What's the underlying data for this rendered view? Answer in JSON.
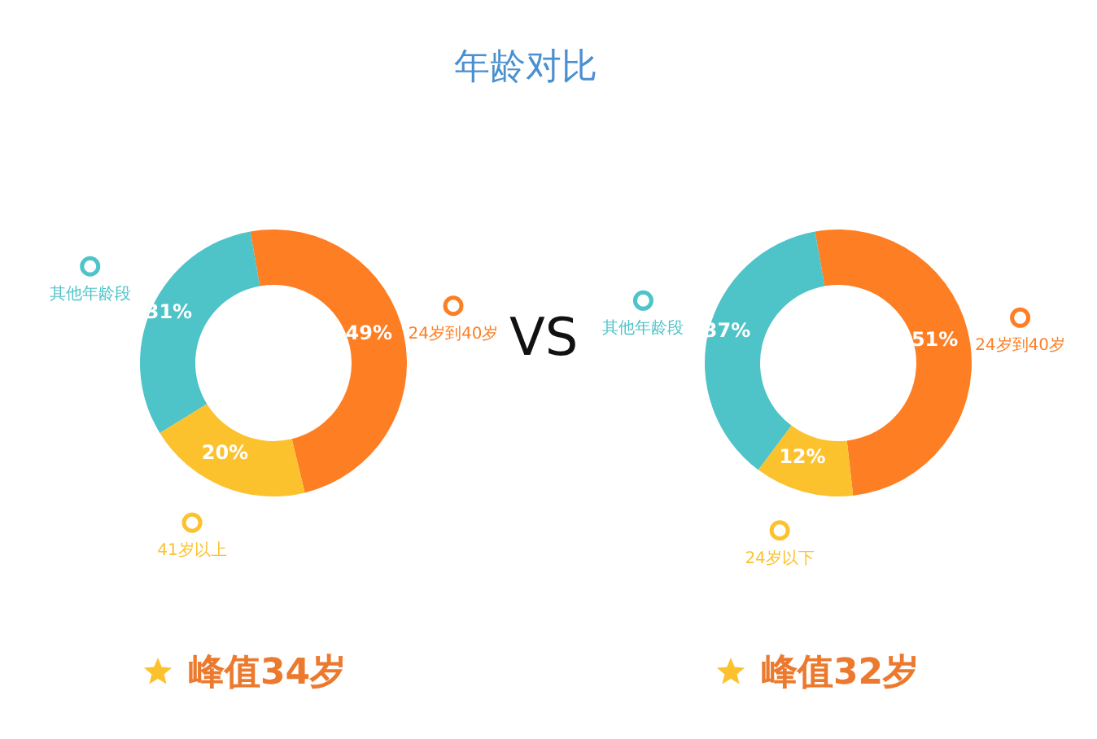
{
  "chart_data": [
    {
      "type": "donut",
      "title": "年龄对比",
      "categories": [
        "24岁到40岁",
        "41岁以上",
        "其他年龄段"
      ],
      "values": [
        49,
        20,
        31
      ],
      "colors": [
        "#fd7e23",
        "#fcc22e",
        "#4ec3c8"
      ],
      "value_labels": [
        "49%",
        "20%",
        "31%"
      ],
      "legend": "right",
      "annotations": [
        "VS",
        "峰值34岁"
      ]
    },
    {
      "type": "donut",
      "categories": [
        "24岁到40岁",
        "24岁以下",
        "其他年龄段"
      ],
      "values": [
        51,
        12,
        37
      ],
      "colors": [
        "#fd7e23",
        "#fcc22e",
        "#4ec3c8"
      ],
      "value_labels": [
        "51%",
        "12%",
        "37%"
      ],
      "legend": "right",
      "annotations": [
        "峰值32岁"
      ]
    }
  ]
}
